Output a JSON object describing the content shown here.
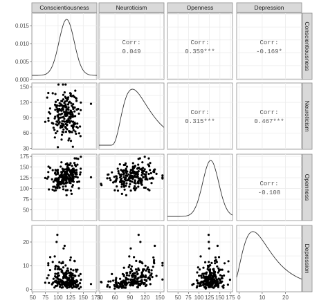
{
  "chart_data": {
    "type": "scatter",
    "title": "",
    "variables": [
      "Conscientiousness",
      "Neuroticism",
      "Openness",
      "Depression"
    ],
    "axes": {
      "Conscientiousness": {
        "range": [
          48,
          177
        ],
        "ticks": [
          50,
          75,
          100,
          125,
          150,
          175
        ],
        "labels": [
          "50",
          "75",
          "100",
          "125",
          "150",
          "175"
        ]
      },
      "Neuroticism": {
        "range": [
          28,
          158
        ],
        "ticks": [
          30,
          60,
          90,
          120,
          150
        ],
        "labels": [
          "30",
          "60",
          "90",
          "120",
          "150"
        ]
      },
      "Openness": {
        "range": [
          25,
          180
        ],
        "ticks": [
          50,
          75,
          100,
          125,
          150,
          175
        ],
        "labels": [
          "50",
          "75",
          "100",
          "125",
          "150",
          "175"
        ]
      },
      "Depression": {
        "range": [
          -1,
          27
        ],
        "ticks": [
          0,
          10,
          20
        ],
        "labels": [
          "0",
          "10",
          "20"
        ]
      }
    },
    "density_y_axis": {
      "range": [
        0,
        0.0185
      ],
      "ticks": [
        0,
        0.005,
        0.01,
        0.015
      ],
      "labels": [
        "0.000",
        "0.005",
        "0.010",
        "0.015"
      ]
    },
    "correlations": [
      {
        "row": "Conscientiousness",
        "col": "Neuroticism",
        "label": "Corr:",
        "value": "0.049"
      },
      {
        "row": "Conscientiousness",
        "col": "Openness",
        "label": "Corr:",
        "value": "0.359***"
      },
      {
        "row": "Conscientiousness",
        "col": "Depression",
        "label": "Corr:",
        "value": "-0.169*"
      },
      {
        "row": "Neuroticism",
        "col": "Openness",
        "label": "Corr:",
        "value": "0.315***"
      },
      {
        "row": "Neuroticism",
        "col": "Depression",
        "label": "Corr:",
        "value": "0.467***"
      },
      {
        "row": "Openness",
        "col": "Depression",
        "label": "Corr:",
        "value": "-0.108"
      }
    ],
    "densities": {
      "Conscientiousness": {
        "mean": 117,
        "sd": 15,
        "skew": 0
      },
      "Neuroticism": {
        "mean": 95,
        "sd": 22,
        "skew": 0.3
      },
      "Openness": {
        "mean": 128,
        "sd": 19,
        "skew": 0
      },
      "Depression": {
        "mean": 6,
        "sd": 5,
        "skew": 1.6
      }
    },
    "n_points": 220,
    "grid": true
  }
}
